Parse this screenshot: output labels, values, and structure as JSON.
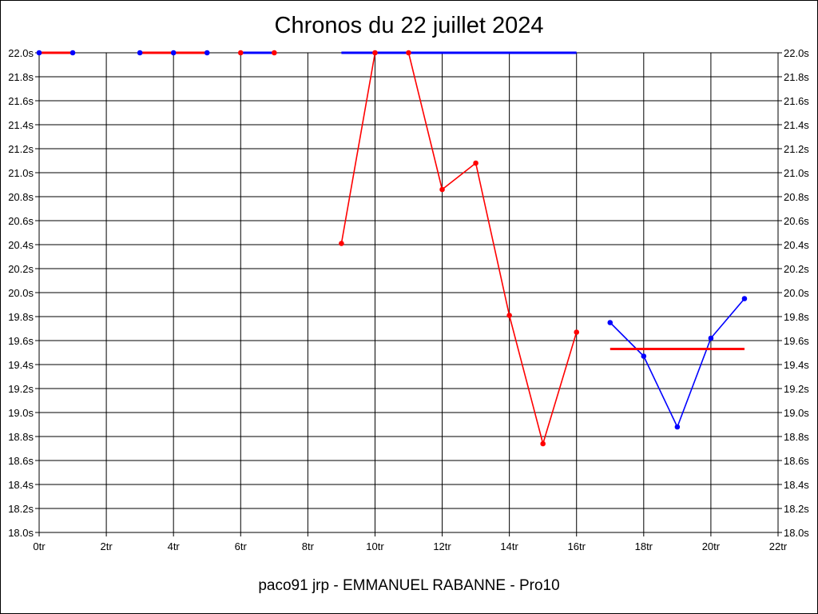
{
  "title": "Chronos du 22 juillet 2024",
  "footer": "paco91 jrp - EMMANUEL RABANNE - Pro10",
  "colors": {
    "red": "#ff0000",
    "blue": "#0000ff",
    "grid": "#000000",
    "frame": "#000000",
    "background": "#ffffff"
  },
  "chart_data": {
    "type": "line",
    "title": "Chronos du 22 juillet 2024",
    "xlabel": "",
    "ylabel": "",
    "xlim": [
      0,
      22
    ],
    "ylim": [
      18.0,
      22.0
    ],
    "grid": true,
    "x_ticks": [
      0,
      2,
      4,
      6,
      8,
      10,
      12,
      14,
      16,
      18,
      20,
      22
    ],
    "x_tick_labels": [
      "0tr",
      "2tr",
      "4tr",
      "6tr",
      "8tr",
      "10tr",
      "12tr",
      "14tr",
      "16tr",
      "18tr",
      "20tr",
      "22tr"
    ],
    "y_ticks": [
      18.0,
      18.2,
      18.4,
      18.6,
      18.8,
      19.0,
      19.2,
      19.4,
      19.6,
      19.8,
      20.0,
      20.2,
      20.4,
      20.6,
      20.8,
      21.0,
      21.2,
      21.4,
      21.6,
      21.8,
      22.0
    ],
    "y_tick_labels": [
      "18.0s",
      "18.2s",
      "18.4s",
      "18.6s",
      "18.8s",
      "19.0s",
      "19.2s",
      "19.4s",
      "19.6s",
      "19.8s",
      "20.0s",
      "20.2s",
      "20.4s",
      "20.6s",
      "20.8s",
      "21.0s",
      "21.2s",
      "21.4s",
      "21.6s",
      "21.8s",
      "22.0s"
    ],
    "series": [
      {
        "color": "#ff0000",
        "line_style": "thick",
        "x": [
          0,
          1
        ],
        "y": [
          22.0,
          22.0
        ],
        "point_colors": [
          "#0000ff",
          "#0000ff"
        ]
      },
      {
        "color": "#ff0000",
        "line_style": "thick",
        "x": [
          3,
          4,
          5
        ],
        "y": [
          22.0,
          22.0,
          22.0
        ],
        "point_colors": [
          "#0000ff",
          "#0000ff",
          "#0000ff"
        ]
      },
      {
        "color": "#0000ff",
        "line_style": "thick",
        "x": [
          6,
          7
        ],
        "y": [
          22.0,
          22.0
        ],
        "point_colors": [
          "#ff0000",
          "#ff0000"
        ]
      },
      {
        "color": "#ff0000",
        "line_style": "thin",
        "x": [
          9,
          10,
          11,
          12,
          13,
          14,
          15,
          16
        ],
        "y": [
          20.41,
          22.0,
          22.0,
          20.86,
          21.08,
          19.81,
          18.74,
          19.67
        ],
        "point_colors": [
          "#ff0000",
          "#ff0000",
          "#ff0000",
          "#ff0000",
          "#ff0000",
          "#ff0000",
          "#ff0000",
          "#ff0000"
        ]
      },
      {
        "color": "#0000ff",
        "line_style": "thick",
        "x": [
          9,
          16
        ],
        "y": [
          22.0,
          22.0
        ],
        "point_colors": []
      },
      {
        "color": "#0000ff",
        "line_style": "thin",
        "x": [
          17,
          18,
          19,
          20,
          21
        ],
        "y": [
          19.75,
          19.47,
          18.88,
          19.62,
          19.95
        ],
        "point_colors": [
          "#0000ff",
          "#0000ff",
          "#0000ff",
          "#0000ff",
          "#0000ff"
        ]
      },
      {
        "color": "#ff0000",
        "line_style": "thick",
        "x": [
          17,
          21
        ],
        "y": [
          19.53,
          19.53
        ],
        "point_colors": []
      }
    ]
  }
}
